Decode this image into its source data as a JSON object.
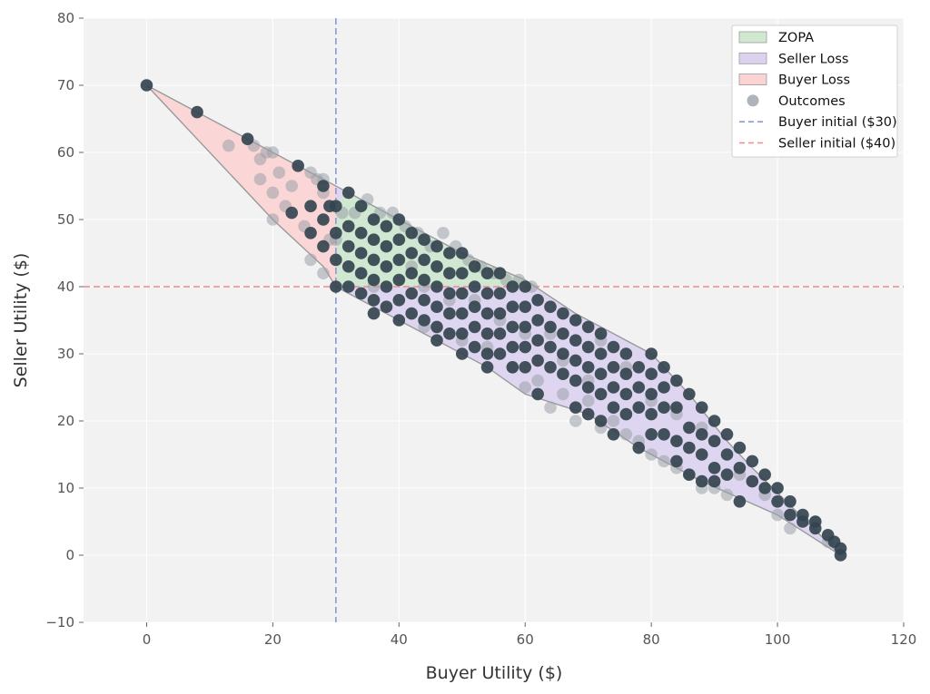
{
  "chart_data": {
    "type": "scatter",
    "title": "",
    "xlabel": "Buyer Utility ($)",
    "ylabel": "Seller Utility ($)",
    "xlim": [
      -10,
      120
    ],
    "ylim": [
      -10,
      80
    ],
    "xticks": [
      0,
      20,
      40,
      60,
      80,
      100,
      120
    ],
    "yticks": [
      -10,
      0,
      10,
      20,
      30,
      40,
      50,
      60,
      70,
      80
    ],
    "xtick_labels": [
      "0",
      "20",
      "40",
      "60",
      "80",
      "100",
      "120"
    ],
    "ytick_labels": [
      "−10",
      "0",
      "10",
      "20",
      "30",
      "40",
      "50",
      "60",
      "70",
      "80"
    ],
    "grid": true,
    "legend_position": "top-right",
    "legend": [
      {
        "key": "zopa",
        "label": "ZOPA",
        "kind": "patch",
        "color": "#cfe8cf"
      },
      {
        "key": "seller_loss",
        "label": "Seller Loss",
        "kind": "patch",
        "color": "#dcd2f0"
      },
      {
        "key": "buyer_loss",
        "label": "Buyer Loss",
        "kind": "patch",
        "color": "#fbd3d3"
      },
      {
        "key": "outcomes",
        "label": "Outcomes",
        "kind": "marker",
        "color": "#aeb4ba"
      },
      {
        "key": "buyer_initial",
        "label": "Buyer initial ($30)",
        "kind": "dashed-line",
        "color": "#8a9ad6"
      },
      {
        "key": "seller_initial",
        "label": "Seller initial ($40)",
        "kind": "dashed-line",
        "color": "#ee8b8b"
      }
    ],
    "reference_lines": {
      "buyer_initial_x": 30,
      "seller_initial_y": 40
    },
    "regions": {
      "hull": [
        [
          0,
          70
        ],
        [
          16,
          62
        ],
        [
          26,
          57
        ],
        [
          32,
          54
        ],
        [
          40,
          50
        ],
        [
          50,
          45
        ],
        [
          60,
          41
        ],
        [
          68,
          36
        ],
        [
          72,
          34
        ],
        [
          80,
          30
        ],
        [
          86,
          24
        ],
        [
          92,
          17
        ],
        [
          96,
          13
        ],
        [
          110,
          0
        ],
        [
          100,
          6
        ],
        [
          88,
          11
        ],
        [
          78,
          16
        ],
        [
          70,
          21
        ],
        [
          60,
          24
        ],
        [
          54,
          28
        ],
        [
          46,
          32
        ],
        [
          38,
          36
        ],
        [
          30,
          40
        ],
        [
          28,
          43
        ],
        [
          20,
          50
        ]
      ],
      "zopa": [
        [
          30,
          40
        ],
        [
          30,
          52.5
        ],
        [
          32,
          54
        ],
        [
          40,
          50
        ],
        [
          50,
          45
        ],
        [
          57.5,
          42
        ],
        [
          62.5,
          40
        ]
      ]
    },
    "colors": {
      "plot_bg": "#f2f2f2",
      "hull_edge": "#9a9a9a",
      "point_dark": "#34444f",
      "point_light": "#9aa1a7",
      "grid": "#ffffff"
    },
    "series": [
      {
        "name": "Outcomes",
        "points": [
          [
            0,
            70
          ],
          [
            8,
            66
          ],
          [
            16,
            62
          ],
          [
            23,
            51
          ],
          [
            24,
            58
          ],
          [
            26,
            52
          ],
          [
            26,
            48
          ],
          [
            28,
            50
          ],
          [
            28,
            46
          ],
          [
            28,
            55
          ],
          [
            29,
            52
          ],
          [
            30,
            52
          ],
          [
            30,
            48
          ],
          [
            30,
            44
          ],
          [
            30,
            40
          ],
          [
            32,
            54
          ],
          [
            32,
            49
          ],
          [
            32,
            46
          ],
          [
            32,
            43
          ],
          [
            32,
            40
          ],
          [
            34,
            52
          ],
          [
            34,
            48
          ],
          [
            34,
            45
          ],
          [
            34,
            42
          ],
          [
            34,
            39
          ],
          [
            36,
            50
          ],
          [
            36,
            47
          ],
          [
            36,
            44
          ],
          [
            36,
            41
          ],
          [
            36,
            38
          ],
          [
            36,
            36
          ],
          [
            38,
            49
          ],
          [
            38,
            46
          ],
          [
            38,
            43
          ],
          [
            38,
            40
          ],
          [
            38,
            37
          ],
          [
            40,
            50
          ],
          [
            40,
            47
          ],
          [
            40,
            44
          ],
          [
            40,
            41
          ],
          [
            40,
            38
          ],
          [
            40,
            35
          ],
          [
            42,
            48
          ],
          [
            42,
            45
          ],
          [
            42,
            42
          ],
          [
            42,
            39
          ],
          [
            42,
            36
          ],
          [
            44,
            47
          ],
          [
            44,
            44
          ],
          [
            44,
            41
          ],
          [
            44,
            38
          ],
          [
            44,
            35
          ],
          [
            46,
            46
          ],
          [
            46,
            43
          ],
          [
            46,
            40
          ],
          [
            46,
            37
          ],
          [
            46,
            34
          ],
          [
            46,
            32
          ],
          [
            48,
            45
          ],
          [
            48,
            42
          ],
          [
            48,
            39
          ],
          [
            48,
            36
          ],
          [
            48,
            33
          ],
          [
            50,
            45
          ],
          [
            50,
            42
          ],
          [
            50,
            39
          ],
          [
            50,
            36
          ],
          [
            50,
            33
          ],
          [
            50,
            30
          ],
          [
            52,
            43
          ],
          [
            52,
            40
          ],
          [
            52,
            37
          ],
          [
            52,
            34
          ],
          [
            52,
            31
          ],
          [
            54,
            42
          ],
          [
            54,
            39
          ],
          [
            54,
            36
          ],
          [
            54,
            33
          ],
          [
            54,
            30
          ],
          [
            54,
            28
          ],
          [
            56,
            42
          ],
          [
            56,
            39
          ],
          [
            56,
            36
          ],
          [
            56,
            33
          ],
          [
            56,
            30
          ],
          [
            58,
            40
          ],
          [
            58,
            37
          ],
          [
            58,
            34
          ],
          [
            58,
            31
          ],
          [
            58,
            28
          ],
          [
            60,
            40
          ],
          [
            60,
            37
          ],
          [
            60,
            34
          ],
          [
            60,
            31
          ],
          [
            60,
            28
          ],
          [
            62,
            38
          ],
          [
            62,
            35
          ],
          [
            62,
            32
          ],
          [
            62,
            29
          ],
          [
            62,
            24
          ],
          [
            64,
            37
          ],
          [
            64,
            34
          ],
          [
            64,
            31
          ],
          [
            64,
            28
          ],
          [
            66,
            36
          ],
          [
            66,
            33
          ],
          [
            66,
            30
          ],
          [
            66,
            27
          ],
          [
            68,
            35
          ],
          [
            68,
            32
          ],
          [
            68,
            29
          ],
          [
            68,
            26
          ],
          [
            68,
            22
          ],
          [
            70,
            34
          ],
          [
            70,
            31
          ],
          [
            70,
            28
          ],
          [
            70,
            25
          ],
          [
            70,
            21
          ],
          [
            72,
            33
          ],
          [
            72,
            30
          ],
          [
            72,
            27
          ],
          [
            72,
            24
          ],
          [
            72,
            20
          ],
          [
            74,
            31
          ],
          [
            74,
            28
          ],
          [
            74,
            25
          ],
          [
            74,
            22
          ],
          [
            74,
            18
          ],
          [
            76,
            30
          ],
          [
            76,
            27
          ],
          [
            76,
            24
          ],
          [
            76,
            21
          ],
          [
            78,
            28
          ],
          [
            78,
            25
          ],
          [
            78,
            22
          ],
          [
            78,
            16
          ],
          [
            80,
            30
          ],
          [
            80,
            27
          ],
          [
            80,
            24
          ],
          [
            80,
            21
          ],
          [
            80,
            18
          ],
          [
            82,
            28
          ],
          [
            82,
            25
          ],
          [
            82,
            22
          ],
          [
            82,
            18
          ],
          [
            84,
            26
          ],
          [
            84,
            22
          ],
          [
            84,
            17
          ],
          [
            84,
            14
          ],
          [
            86,
            24
          ],
          [
            86,
            19
          ],
          [
            86,
            16
          ],
          [
            86,
            12
          ],
          [
            88,
            22
          ],
          [
            88,
            18
          ],
          [
            88,
            15
          ],
          [
            88,
            11
          ],
          [
            90,
            20
          ],
          [
            90,
            17
          ],
          [
            90,
            13
          ],
          [
            90,
            11
          ],
          [
            92,
            18
          ],
          [
            92,
            15
          ],
          [
            92,
            12
          ],
          [
            94,
            16
          ],
          [
            94,
            13
          ],
          [
            94,
            8
          ],
          [
            96,
            14
          ],
          [
            96,
            11
          ],
          [
            98,
            12
          ],
          [
            98,
            10
          ],
          [
            100,
            10
          ],
          [
            100,
            8
          ],
          [
            102,
            8
          ],
          [
            102,
            6
          ],
          [
            104,
            6
          ],
          [
            104,
            5
          ],
          [
            106,
            5
          ],
          [
            106,
            4
          ],
          [
            108,
            3
          ],
          [
            109,
            2
          ],
          [
            110,
            1
          ],
          [
            110,
            0
          ]
        ],
        "light_points": [
          [
            13,
            61
          ],
          [
            17,
            61
          ],
          [
            19,
            60
          ],
          [
            20,
            60
          ],
          [
            18,
            59
          ],
          [
            21,
            57
          ],
          [
            18,
            56
          ],
          [
            20,
            54
          ],
          [
            23,
            55
          ],
          [
            20,
            50
          ],
          [
            22,
            52
          ],
          [
            26,
            57
          ],
          [
            27,
            56
          ],
          [
            28,
            56
          ],
          [
            28,
            54
          ],
          [
            25,
            49
          ],
          [
            26,
            44
          ],
          [
            28,
            42
          ],
          [
            29,
            47
          ],
          [
            30,
            47
          ],
          [
            31,
            51
          ],
          [
            33,
            51
          ],
          [
            35,
            53
          ],
          [
            37,
            51
          ],
          [
            39,
            51
          ],
          [
            41,
            49
          ],
          [
            43,
            48
          ],
          [
            45,
            46
          ],
          [
            47,
            48
          ],
          [
            49,
            46
          ],
          [
            51,
            44
          ],
          [
            53,
            43
          ],
          [
            55,
            42
          ],
          [
            57,
            41
          ],
          [
            59,
            41
          ],
          [
            61,
            40
          ],
          [
            36,
            40
          ],
          [
            42,
            43
          ],
          [
            44,
            40
          ],
          [
            48,
            38
          ],
          [
            52,
            38
          ],
          [
            56,
            35
          ],
          [
            60,
            33
          ],
          [
            64,
            33
          ],
          [
            66,
            29
          ],
          [
            70,
            26
          ],
          [
            72,
            32
          ],
          [
            76,
            28
          ],
          [
            80,
            23
          ],
          [
            84,
            21
          ],
          [
            88,
            19
          ],
          [
            90,
            10
          ],
          [
            94,
            12
          ],
          [
            98,
            9
          ],
          [
            100,
            6
          ],
          [
            102,
            4
          ],
          [
            106,
            5
          ],
          [
            108,
            2
          ],
          [
            44,
            34
          ],
          [
            50,
            32
          ],
          [
            54,
            31
          ],
          [
            58,
            28
          ],
          [
            62,
            26
          ],
          [
            66,
            24
          ],
          [
            70,
            23
          ],
          [
            74,
            20
          ],
          [
            78,
            17
          ],
          [
            82,
            14
          ],
          [
            86,
            12
          ],
          [
            60,
            25
          ],
          [
            64,
            22
          ],
          [
            68,
            20
          ],
          [
            72,
            19
          ],
          [
            76,
            18
          ],
          [
            80,
            15
          ],
          [
            84,
            13
          ],
          [
            88,
            10
          ],
          [
            92,
            9
          ]
        ]
      }
    ]
  }
}
